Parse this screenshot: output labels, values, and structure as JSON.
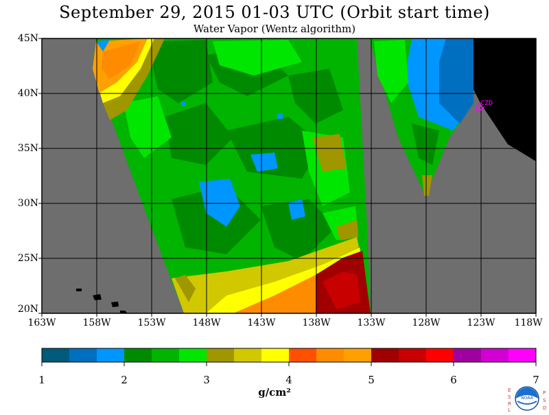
{
  "header": {
    "title": "September 29, 2015  01-03 UTC  (Orbit start time)",
    "subtitle": "Water Vapor (Wentz algorithm)"
  },
  "map": {
    "lat_labels": [
      "45N",
      "40N",
      "35N",
      "30N",
      "25N",
      "20N"
    ],
    "lon_labels": [
      "163W",
      "158W",
      "153W",
      "148W",
      "143W",
      "138W",
      "133W",
      "128W",
      "123W",
      "118W"
    ],
    "station_label": "CZD",
    "colors": {
      "no_data": "#6e6e6e",
      "land": "#000000",
      "station": "#ff00ff"
    }
  },
  "colorbar": {
    "ticks": [
      "1",
      "2",
      "3",
      "4",
      "5",
      "6",
      "7"
    ],
    "units": "g/cm²",
    "colors": [
      "#005a7a",
      "#006fbf",
      "#0096ff",
      "#008a00",
      "#00b400",
      "#00e600",
      "#a09600",
      "#d2c800",
      "#ffff00",
      "#ff5000",
      "#ff8c00",
      "#ffa000",
      "#a00000",
      "#c80000",
      "#ff0000",
      "#a000a0",
      "#d200d2",
      "#ff00ff"
    ]
  },
  "logo": {
    "left_letters": [
      "E",
      "S",
      "R",
      "L"
    ],
    "right_letters": [
      "P",
      "S",
      "D"
    ],
    "name": "NOAA"
  }
}
